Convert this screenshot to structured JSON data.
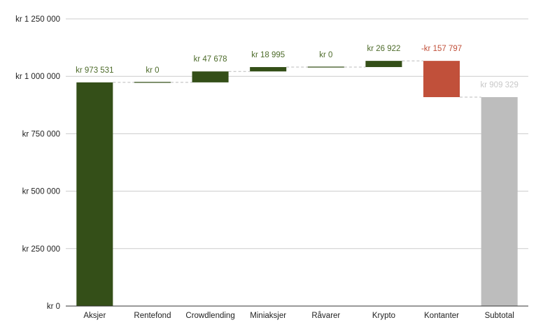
{
  "chart_data": {
    "type": "bar",
    "subtype": "waterfall",
    "title": "",
    "xlabel": "",
    "ylabel": "",
    "ylim": [
      0,
      1250000
    ],
    "y_ticks": [
      0,
      250000,
      500000,
      750000,
      1000000,
      1250000
    ],
    "y_tick_labels": [
      "kr   0",
      "kr  250 000",
      "kr  500 000",
      "kr  750 000",
      "kr  1 000 000",
      "kr  1 250 000"
    ],
    "grid": true,
    "legend": "none",
    "categories": [
      "Aksjer",
      "Rentefond",
      "Crowdlending",
      "Miniaksjer",
      "Råvarer",
      "Krypto",
      "Kontanter",
      "Subtotal"
    ],
    "values": [
      973531,
      0,
      47678,
      18995,
      0,
      26922,
      -157797,
      909329
    ],
    "kinds": [
      "increase",
      "increase",
      "increase",
      "increase",
      "increase",
      "increase",
      "decrease",
      "total"
    ],
    "data_labels": [
      "kr  973 531",
      "kr  0",
      "kr  47 678",
      "kr  18 995",
      "kr  0",
      "kr  26 922",
      "-kr  157 797",
      "kr  909 329"
    ],
    "colors": {
      "increase": "#344f18",
      "decrease": "#c1503a",
      "total": "#bdbdbd",
      "increase_label": "#4d6b2a",
      "decrease_label": "#c1503a",
      "total_label": "#c8c8c8"
    }
  }
}
